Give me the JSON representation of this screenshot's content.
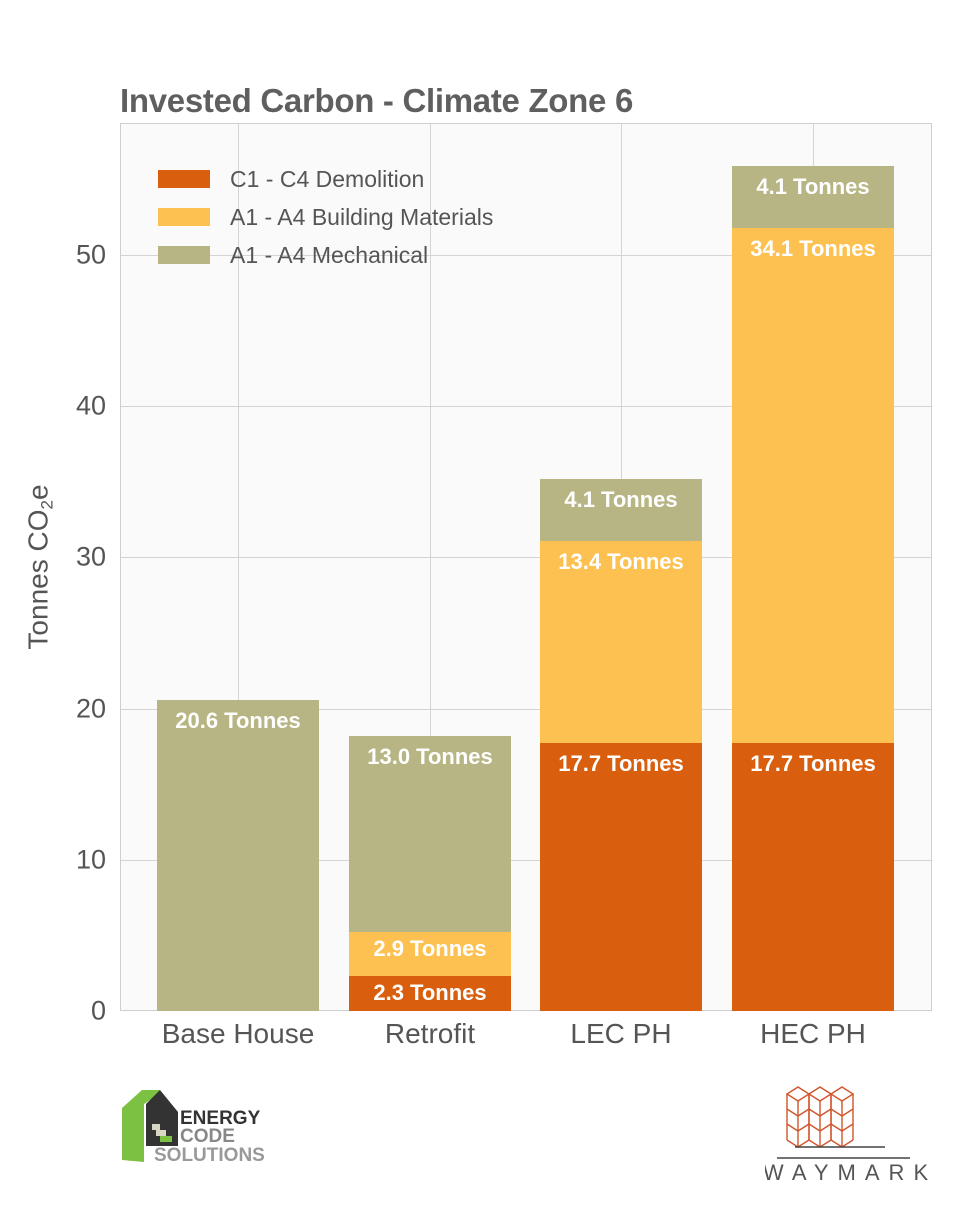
{
  "title": "Invested Carbon - Climate Zone 6",
  "legend": [
    {
      "label": "C1 - C4 Demolition",
      "color": "#d95f0e"
    },
    {
      "label": "A1 - A4 Building Materials",
      "color": "#fdc151"
    },
    {
      "label": "A1 - A4 Mechanical",
      "color": "#b8b584"
    }
  ],
  "yaxis": {
    "label": "Tonnes CO",
    "label_sub": "2",
    "label_suffix": "e",
    "ticks": [
      "0",
      "10",
      "20",
      "30",
      "40",
      "50"
    ]
  },
  "xaxis": {
    "ticks": [
      "Base House",
      "Retrofit",
      "LEC PH",
      "HEC PH"
    ]
  },
  "logos": {
    "left": {
      "line1": "ENERGY",
      "line2": "CODE",
      "line3": "SOLUTIONS"
    },
    "right": {
      "text": "WAYMARK"
    }
  },
  "chart_data": {
    "type": "bar",
    "stacked": true,
    "title": "Invested Carbon - Climate Zone 6",
    "xlabel": "",
    "ylabel": "Tonnes CO2e",
    "ylim": [
      0,
      58.7
    ],
    "grid": true,
    "legend_position": "upper left",
    "categories": [
      "Base House",
      "Retrofit",
      "LEC PH",
      "HEC PH"
    ],
    "series": [
      {
        "name": "C1 - C4 Demolition",
        "color": "#d95f0e",
        "values": [
          0,
          2.3,
          17.7,
          17.7
        ],
        "labels": [
          "",
          "2.3 Tonnes",
          "17.7 Tonnes",
          "17.7 Tonnes"
        ]
      },
      {
        "name": "A1 - A4 Building Materials",
        "color": "#fdc151",
        "values": [
          0,
          2.9,
          13.4,
          34.1
        ],
        "labels": [
          "",
          "2.9 Tonnes",
          "13.4 Tonnes",
          "34.1 Tonnes"
        ]
      },
      {
        "name": "A1 - A4 Mechanical",
        "color": "#b8b584",
        "values": [
          20.6,
          13.0,
          4.1,
          4.1
        ],
        "labels": [
          "20.6 Tonnes",
          "13.0 Tonnes",
          "4.1 Tonnes",
          "4.1 Tonnes"
        ]
      }
    ]
  }
}
